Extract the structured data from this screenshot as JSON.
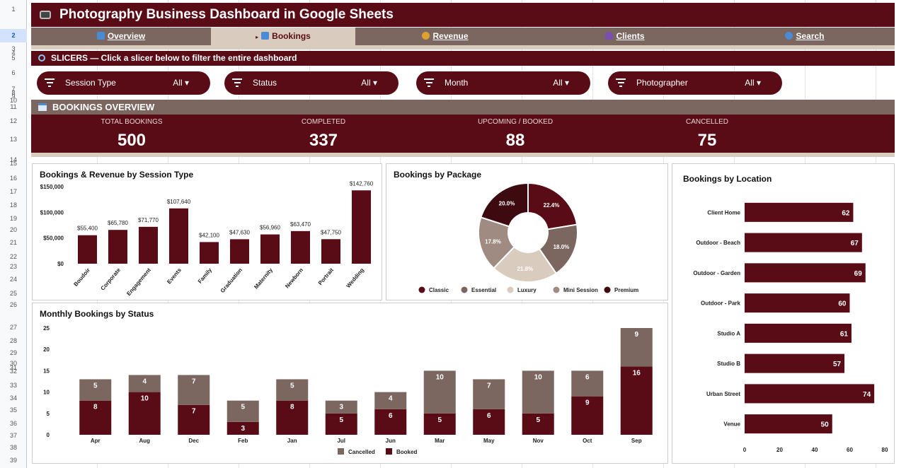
{
  "title": "Photography Business Dashboard in Google Sheets",
  "row_numbers": [
    "1",
    "2",
    "3",
    "4",
    "5",
    "6",
    "7",
    "8",
    "9",
    "10",
    "11",
    "12",
    "13",
    "14",
    "15",
    "16",
    "17",
    "18",
    "19",
    "20",
    "21",
    "22",
    "23",
    "24",
    "25",
    "26",
    "27",
    "28",
    "29",
    "30",
    "31",
    "32",
    "33",
    "34",
    "35",
    "36",
    "37",
    "38",
    "39"
  ],
  "nav": {
    "tabs": [
      {
        "label": "Overview",
        "icon": "chart-icon",
        "color": "#4a8bd6"
      },
      {
        "label": "Bookings",
        "icon": "calendar-icon",
        "color": "#4a8bd6",
        "active": true,
        "marker": "▸"
      },
      {
        "label": "Revenue",
        "icon": "moneybag-icon",
        "color": "#e0a030"
      },
      {
        "label": "Clients",
        "icon": "person-icon",
        "color": "#7a4fb0"
      },
      {
        "label": "Search",
        "icon": "magnifier-icon",
        "color": "#4a8bd6"
      }
    ]
  },
  "slicers": {
    "header": "SLICERS — Click a slicer below to filter the entire dashboard",
    "items": [
      {
        "label": "Session Type",
        "value": "All"
      },
      {
        "label": "Status",
        "value": "All"
      },
      {
        "label": "Month",
        "value": "All"
      },
      {
        "label": "Photographer",
        "value": "All"
      }
    ]
  },
  "overview": {
    "header": "BOOKINGS OVERVIEW",
    "kpis": [
      {
        "label": "TOTAL BOOKINGS",
        "value": "500"
      },
      {
        "label": "COMPLETED",
        "value": "337"
      },
      {
        "label": "UPCOMING / BOOKED",
        "value": "88"
      },
      {
        "label": "CANCELLED",
        "value": "75"
      }
    ]
  },
  "colors": {
    "maroon": "#5a0c16",
    "brown": "#7b6660",
    "tan": "#d9cbbd",
    "taupe": "#a08b83",
    "dark": "#3d0a10"
  },
  "chart_data": [
    {
      "type": "bar",
      "title": "Bookings & Revenue by Session Type",
      "categories": [
        "Boudoir",
        "Corporate",
        "Engagement",
        "Events",
        "Family",
        "Graduation",
        "Maternity",
        "Newborn",
        "Portrait",
        "Wedding"
      ],
      "values": [
        55400,
        65780,
        71770,
        107640,
        42100,
        47630,
        56960,
        63470,
        47750,
        142760
      ],
      "data_labels": [
        "$55,400",
        "$65,780",
        "$71,770",
        "$107,640",
        "$42,100",
        "$47,630",
        "$56,960",
        "$63,470",
        "$47,750",
        "$142,760"
      ],
      "ylim": [
        0,
        150000
      ],
      "yticks": [
        "$0",
        "$50,000",
        "$100,000",
        "$150,000"
      ],
      "ytick_values": [
        0,
        50000,
        100000,
        150000
      ]
    },
    {
      "type": "pie",
      "title": "Bookings by Package",
      "categories": [
        "Classic",
        "Essential",
        "Luxury",
        "Mini Session",
        "Premium"
      ],
      "values": [
        22.4,
        18.0,
        21.8,
        17.8,
        20.0
      ],
      "data_labels": [
        "22.4%",
        "18.0%",
        "21.8%",
        "17.8%",
        "20.0%"
      ],
      "colors": [
        "#5a0c16",
        "#7b6660",
        "#d9cbbd",
        "#a08b83",
        "#3d0a10"
      ],
      "legend": "bottom"
    },
    {
      "type": "bar",
      "title": "Monthly Bookings by Status",
      "categories": [
        "Apr",
        "Aug",
        "Dec",
        "Feb",
        "Jan",
        "Jul",
        "Jun",
        "Mar",
        "May",
        "Nov",
        "Oct",
        "Sep"
      ],
      "series": [
        {
          "name": "Booked",
          "values": [
            8,
            10,
            7,
            3,
            8,
            5,
            6,
            5,
            6,
            5,
            9,
            16
          ]
        },
        {
          "name": "Cancelled",
          "values": [
            5,
            4,
            7,
            5,
            5,
            3,
            4,
            10,
            7,
            10,
            6,
            9
          ]
        }
      ],
      "ylim": [
        0,
        25
      ],
      "yticks": [
        "0",
        "5",
        "10",
        "15",
        "20",
        "25"
      ],
      "ytick_values": [
        0,
        5,
        10,
        15,
        20,
        25
      ],
      "legend": "bottom"
    },
    {
      "type": "bar",
      "title": "Bookings by Location",
      "categories": [
        "Client Home",
        "Outdoor - Beach",
        "Outdoor - Garden",
        "Outdoor - Park",
        "Studio A",
        "Studio B",
        "Urban Street",
        "Venue"
      ],
      "values": [
        62,
        67,
        69,
        60,
        61,
        57,
        74,
        50
      ],
      "xlim": [
        0,
        80
      ],
      "xticks": [
        "0",
        "20",
        "40",
        "60",
        "80"
      ],
      "xtick_values": [
        0,
        20,
        40,
        60,
        80
      ]
    }
  ]
}
